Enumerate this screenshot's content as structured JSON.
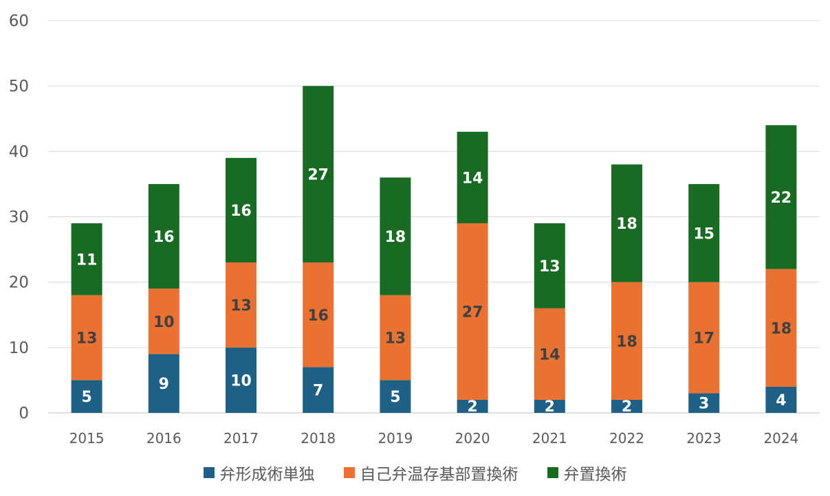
{
  "chart_data": {
    "type": "bar",
    "stacked": true,
    "categories": [
      "2015",
      "2016",
      "2017",
      "2018",
      "2019",
      "2020",
      "2021",
      "2022",
      "2023",
      "2024"
    ],
    "series": [
      {
        "name": "弁形成術単独",
        "color": "#1f6085",
        "label_color": "#ffffff",
        "values": [
          5,
          9,
          10,
          7,
          5,
          2,
          2,
          2,
          3,
          4
        ]
      },
      {
        "name": "自己弁温存基部置換術",
        "color": "#e97132",
        "label_color": "#404040",
        "values": [
          13,
          10,
          13,
          16,
          13,
          27,
          14,
          18,
          17,
          18
        ]
      },
      {
        "name": "弁置換術",
        "color": "#196b24",
        "label_color": "#ffffff",
        "values": [
          11,
          16,
          16,
          27,
          18,
          14,
          13,
          18,
          15,
          22
        ]
      }
    ],
    "yticks": [
      0,
      10,
      20,
      30,
      40,
      50,
      60
    ],
    "ylim": [
      0,
      60
    ],
    "grid": true,
    "legend_position": "bottom"
  }
}
